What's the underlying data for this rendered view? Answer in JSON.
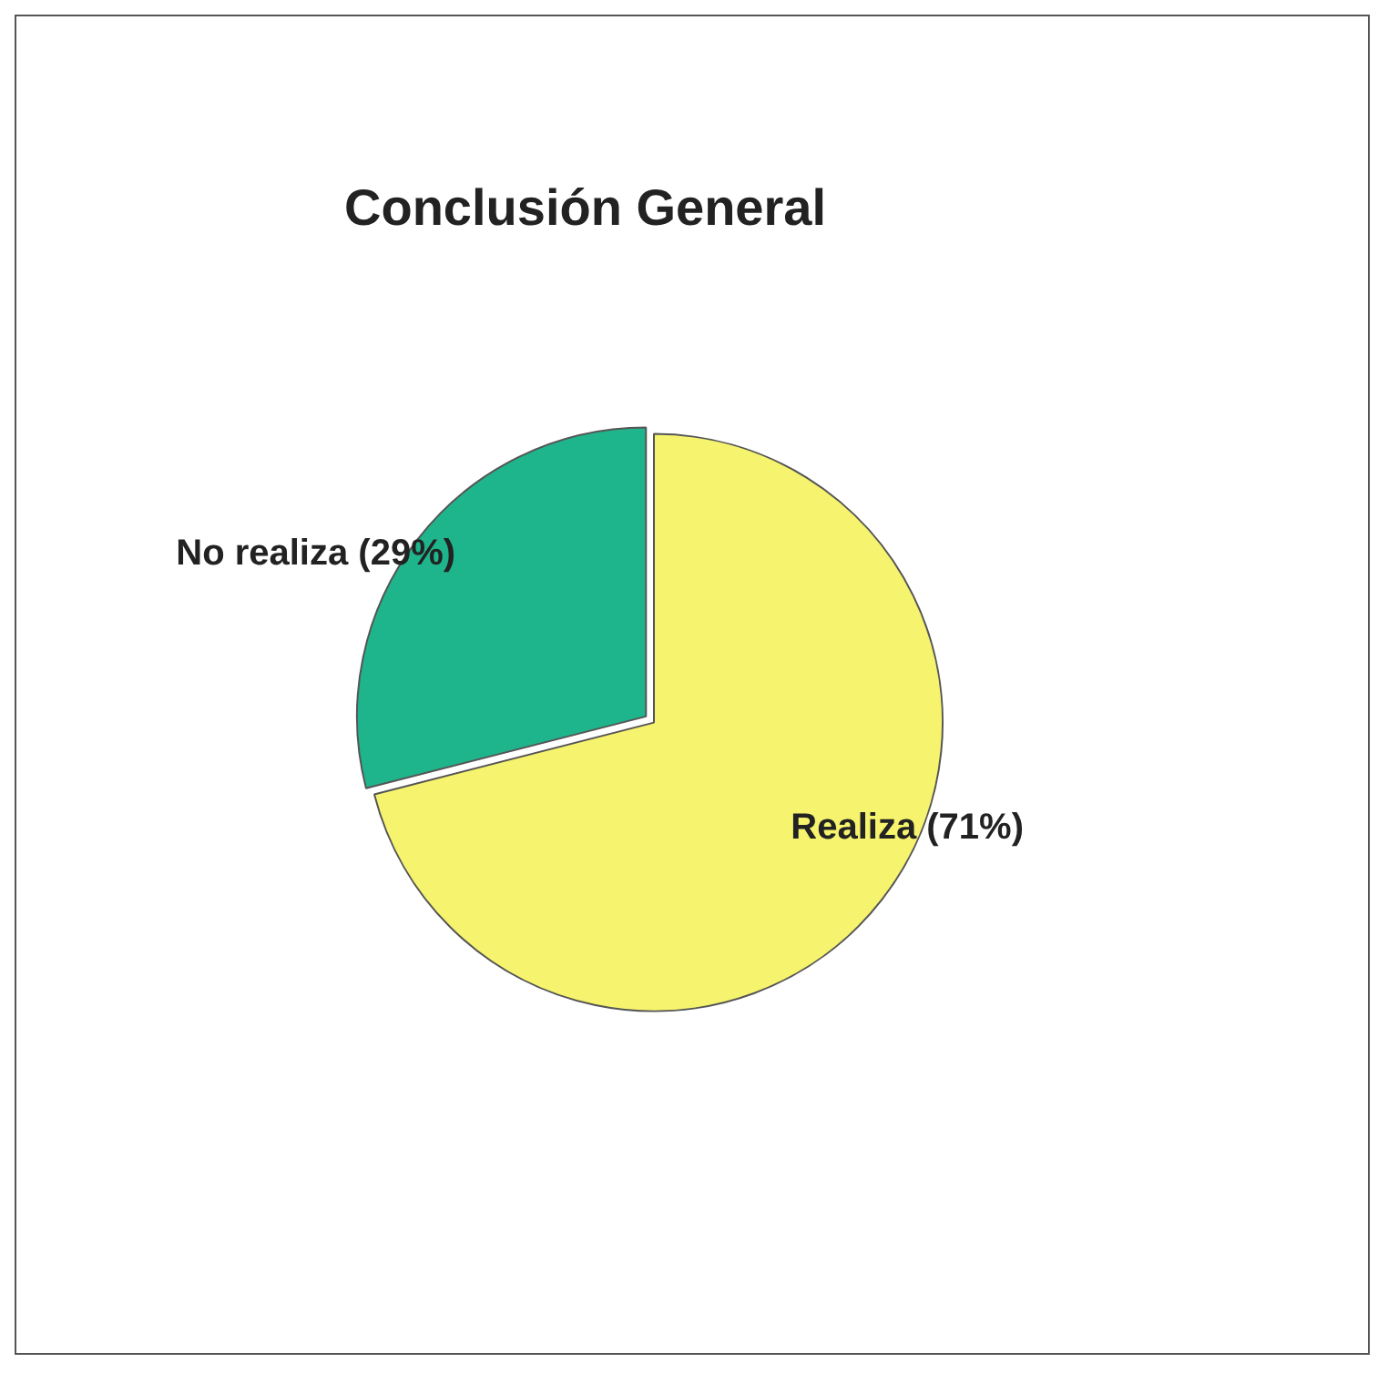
{
  "chart_data": {
    "type": "pie",
    "title": "Conclusión General",
    "categories": [
      "Realiza (71%)",
      "No realiza (29%)"
    ],
    "values": [
      71,
      29
    ],
    "colors": [
      "#f6f36e",
      "#1fb58c"
    ],
    "legend": false
  }
}
